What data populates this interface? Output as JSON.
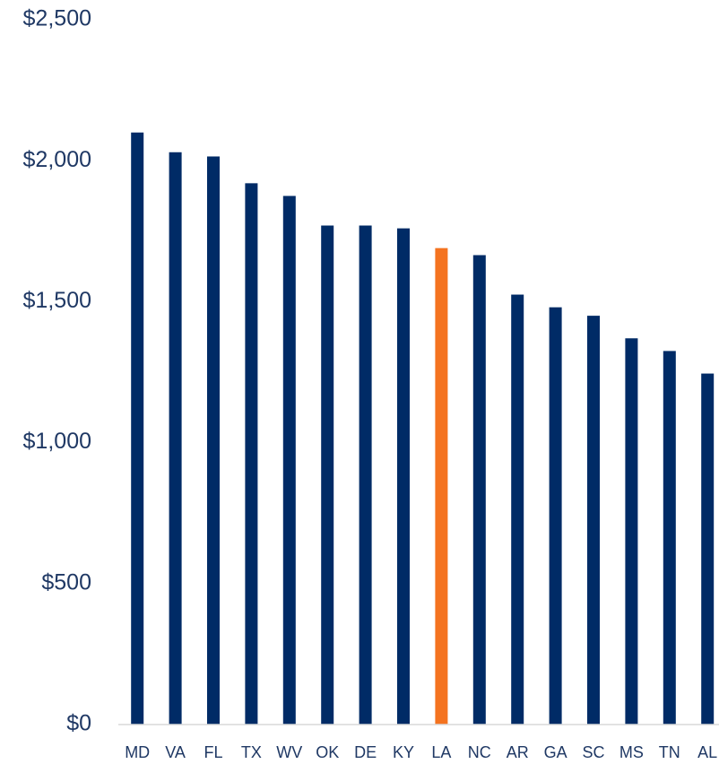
{
  "chart_data": {
    "type": "bar",
    "categories": [
      "MD",
      "VA",
      "FL",
      "TX",
      "WV",
      "OK",
      "DE",
      "KY",
      "LA",
      "NC",
      "AR",
      "GA",
      "SC",
      "MS",
      "TN",
      "AL"
    ],
    "values": [
      2100,
      2030,
      2015,
      1920,
      1875,
      1770,
      1770,
      1760,
      1690,
      1665,
      1525,
      1480,
      1450,
      1370,
      1325,
      1245
    ],
    "colors": [
      "#002b66",
      "#002b66",
      "#002b66",
      "#002b66",
      "#002b66",
      "#002b66",
      "#002b66",
      "#002b66",
      "#f47320",
      "#002b66",
      "#002b66",
      "#002b66",
      "#002b66",
      "#002b66",
      "#002b66",
      "#002b66"
    ],
    "ylim": [
      0,
      2500
    ],
    "yticks": [
      {
        "value": 0,
        "label": "$0"
      },
      {
        "value": 500,
        "label": "$500"
      },
      {
        "value": 1000,
        "label": "$1,000"
      },
      {
        "value": 1500,
        "label": "$1,500"
      },
      {
        "value": 2000,
        "label": "$2,000"
      },
      {
        "value": 2500,
        "label": "$2,500"
      }
    ],
    "grid": false
  }
}
